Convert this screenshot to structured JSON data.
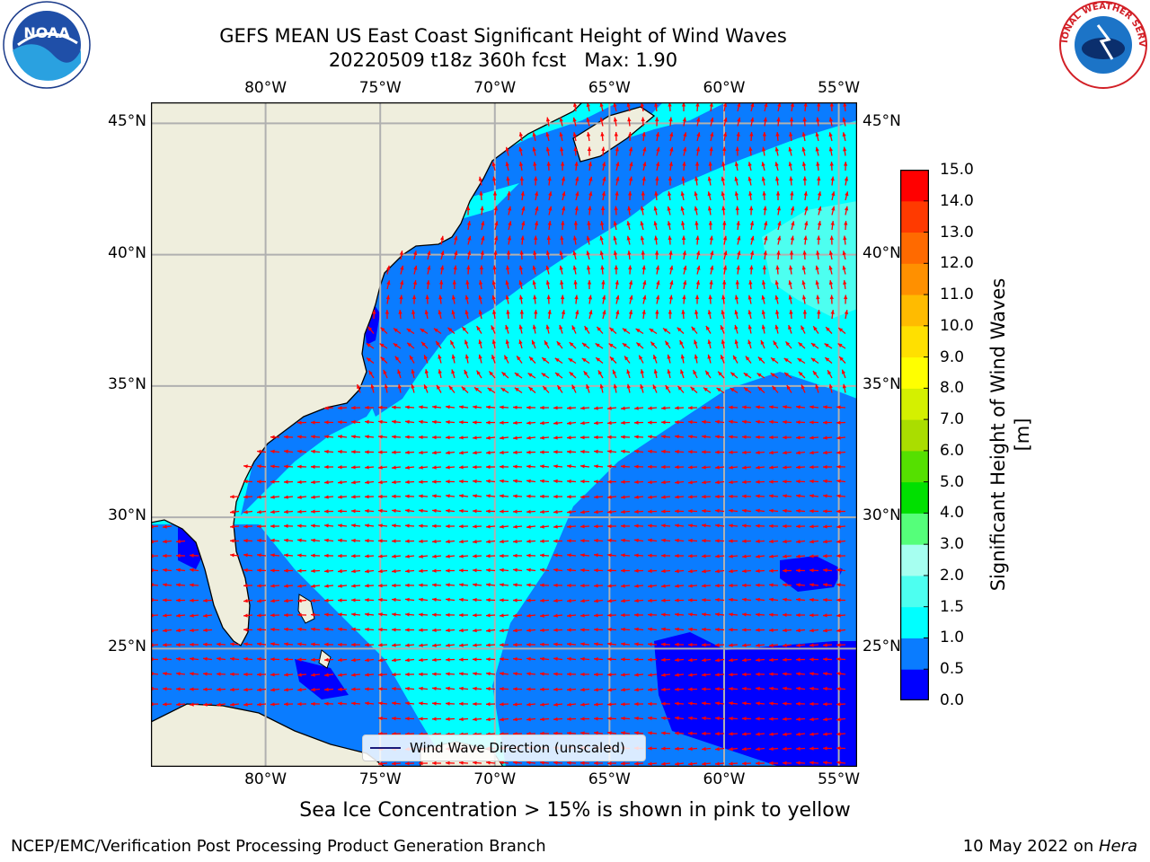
{
  "title": {
    "line1": "GEFS MEAN US East Coast Significant Height of Wind Waves",
    "line2": "20220509 t18z 360h fcst   Max: 1.90"
  },
  "axes": {
    "lon_labels": [
      "80°W",
      "75°W",
      "70°W",
      "65°W",
      "60°W",
      "55°W"
    ],
    "lat_labels": [
      "45°N",
      "40°N",
      "35°N",
      "30°N",
      "25°N"
    ],
    "lon_range": [
      -85,
      -54.2
    ],
    "lat_range": [
      20.5,
      45.8
    ],
    "grid": true
  },
  "colorbar": {
    "title": "Significant Height of Wind Waves [m]",
    "levels": [
      "0.0",
      "0.5",
      "1.0",
      "1.5",
      "2.0",
      "3.0",
      "4.0",
      "5.0",
      "6.0",
      "7.0",
      "8.0",
      "9.0",
      "10.0",
      "11.0",
      "12.0",
      "13.0",
      "14.0",
      "15.0"
    ],
    "colors": [
      "#0000ff",
      "#0a7cff",
      "#00ffff",
      "#4dfff0",
      "#a6fff0",
      "#55ff7a",
      "#00e000",
      "#55e000",
      "#aadd00",
      "#d4f000",
      "#ffff00",
      "#ffe000",
      "#ffbb00",
      "#ff9000",
      "#ff6a00",
      "#ff3a00",
      "#ff0000"
    ]
  },
  "legend": {
    "label": "Wind Wave Direction (unscaled)"
  },
  "note": "Sea Ice Concentration > 15% is shown in pink to yellow",
  "footer": {
    "left": "NCEP/EMC/Verification Post Processing Product Generation Branch",
    "right_date": "10 May 2022 on ",
    "right_host": "Hera"
  },
  "logos": {
    "left": "NOAA",
    "right": "NATIONAL WEATHER SERVICE"
  },
  "colors": {
    "land": "#efeedd",
    "arrow": "#ff0000"
  }
}
